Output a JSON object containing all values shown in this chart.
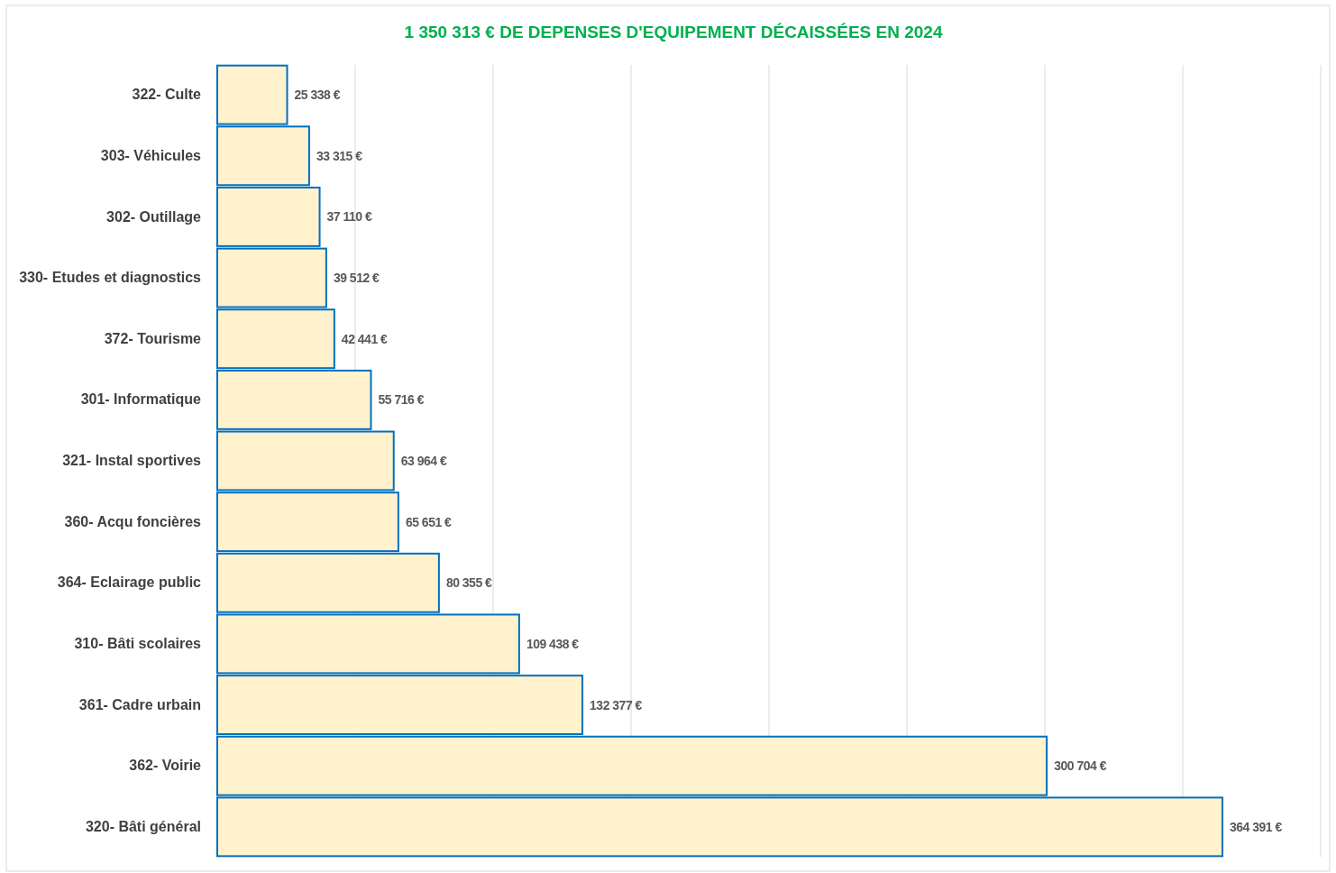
{
  "chart_data": {
    "type": "bar",
    "orientation": "horizontal",
    "title": "1 350 313 €  DE DEPENSES D'EQUIPEMENT DÉCAISSÉES EN 2024",
    "categories": [
      "322- Culte",
      "303- Véhicules",
      "302- Outillage",
      "330- Etudes et diagnostics",
      "372- Tourisme",
      "301- Informatique",
      "321- Instal sportives",
      "360- Acqu foncières",
      "364- Eclairage public",
      "310- Bâti scolaires",
      "361- Cadre urbain",
      "362- Voirie",
      "320- Bâti général"
    ],
    "series": [
      {
        "color": "#fff2cc",
        "values": [
          25338,
          33315,
          37110,
          39512,
          42441,
          55716,
          63964,
          65651,
          80355,
          109438,
          132377,
          300704,
          364391
        ],
        "value_labels": [
          "25 338 €",
          "33 315 €",
          "37 110 €",
          "39 512 €",
          "42 441 €",
          "55 716 €",
          "63 964 €",
          "65 651 €",
          "80 355 €",
          "109 438 €",
          "132 377 €",
          "300 704 €",
          "364 391 €"
        ]
      }
    ],
    "xlim": [
      0,
      400000
    ],
    "xticks": [
      {
        "value": 0,
        "label": null
      },
      {
        "value": 50000,
        "label": null
      },
      {
        "value": 100000,
        "label": null
      },
      {
        "value": 150000,
        "label": null
      },
      {
        "value": 200000,
        "label": null
      },
      {
        "value": 250000,
        "label": null
      },
      {
        "value": 300000,
        "label": null
      },
      {
        "value": 350000,
        "label": null
      },
      {
        "value": 400000,
        "label": null
      }
    ],
    "tick_labels": "y",
    "grid": "x"
  }
}
